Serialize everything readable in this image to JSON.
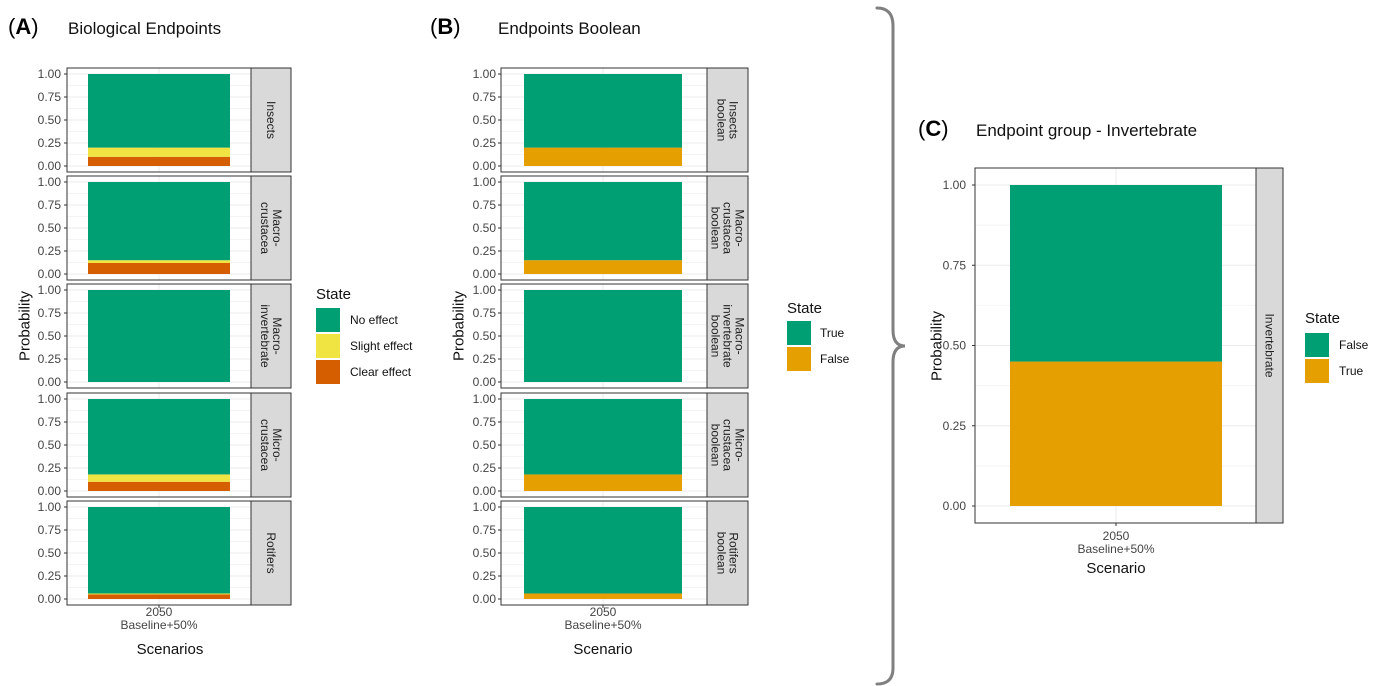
{
  "chart_data": [
    {
      "type": "bar",
      "panel_letter": "A",
      "title": "Biological Endpoints",
      "xlabel": "Scenarios",
      "ylabel": "Probability",
      "categories": [
        "2050\nBaseline+50%"
      ],
      "ylim": [
        0,
        1
      ],
      "yticks": [
        "0.00",
        "0.25",
        "0.50",
        "0.75",
        "1.00"
      ],
      "grid": true,
      "stacked": true,
      "legend": {
        "title": "State",
        "position": "right",
        "items": [
          {
            "label": "No effect",
            "color": "#009E73"
          },
          {
            "label": "Slight effect",
            "color": "#F0E442"
          },
          {
            "label": "Clear effect",
            "color": "#D55E00"
          }
        ]
      },
      "facets": [
        {
          "strip": "Insects",
          "values": {
            "Clear effect": 0.1,
            "Slight effect": 0.1,
            "No effect": 0.8
          }
        },
        {
          "strip": "Macro-\ncrustacea",
          "values": {
            "Clear effect": 0.12,
            "Slight effect": 0.03,
            "No effect": 0.85
          }
        },
        {
          "strip": "Macro-\ninvertebrate",
          "values": {
            "Clear effect": 0.0,
            "Slight effect": 0.0,
            "No effect": 1.0
          }
        },
        {
          "strip": "Micro-\ncrustacea",
          "values": {
            "Clear effect": 0.1,
            "Slight effect": 0.08,
            "No effect": 0.82
          }
        },
        {
          "strip": "Rotifers",
          "values": {
            "Clear effect": 0.05,
            "Slight effect": 0.01,
            "No effect": 0.94
          }
        }
      ]
    },
    {
      "type": "bar",
      "panel_letter": "B",
      "title": "Endpoints Boolean",
      "xlabel": "Scenario",
      "ylabel": "Probability",
      "categories": [
        "2050\nBaseline+50%"
      ],
      "ylim": [
        0,
        1
      ],
      "yticks": [
        "0.00",
        "0.25",
        "0.50",
        "0.75",
        "1.00"
      ],
      "grid": true,
      "stacked": true,
      "legend": {
        "title": "State",
        "position": "right",
        "items": [
          {
            "label": "True",
            "color": "#009E73"
          },
          {
            "label": "False",
            "color": "#E69F00"
          }
        ]
      },
      "facets": [
        {
          "strip": "Insects\nboolean",
          "values": {
            "False": 0.2,
            "True": 0.8
          }
        },
        {
          "strip": "Macro-\ncrustacea\nboolean",
          "values": {
            "False": 0.15,
            "True": 0.85
          }
        },
        {
          "strip": "Macro-\ninvertebrate\nboolean",
          "values": {
            "False": 0.0,
            "True": 1.0
          }
        },
        {
          "strip": "Micro-\ncrustacea\nboolean",
          "values": {
            "False": 0.18,
            "True": 0.82
          }
        },
        {
          "strip": "Rotifers\nboolean",
          "values": {
            "False": 0.06,
            "True": 0.94
          }
        }
      ]
    },
    {
      "type": "bar",
      "panel_letter": "C",
      "title": "Endpoint group - Invertebrate",
      "xlabel": "Scenario",
      "ylabel": "Probability",
      "categories": [
        "2050\nBaseline+50%"
      ],
      "ylim": [
        0,
        1
      ],
      "yticks": [
        "0.00",
        "0.25",
        "0.50",
        "0.75",
        "1.00"
      ],
      "grid": true,
      "stacked": true,
      "legend": {
        "title": "State",
        "position": "right",
        "items": [
          {
            "label": "False",
            "color": "#009E73"
          },
          {
            "label": "True",
            "color": "#E69F00"
          }
        ]
      },
      "facets": [
        {
          "strip": "Invertebrate",
          "values": {
            "True": 0.45,
            "False": 0.55
          }
        }
      ]
    }
  ],
  "colors": {
    "green": "#009E73",
    "yellow": "#F0E442",
    "orange_red": "#D55E00",
    "amber": "#E69F00",
    "strip_bg": "#D9D9D9",
    "grid": "#EBEBEB",
    "bracket": "#808080"
  }
}
